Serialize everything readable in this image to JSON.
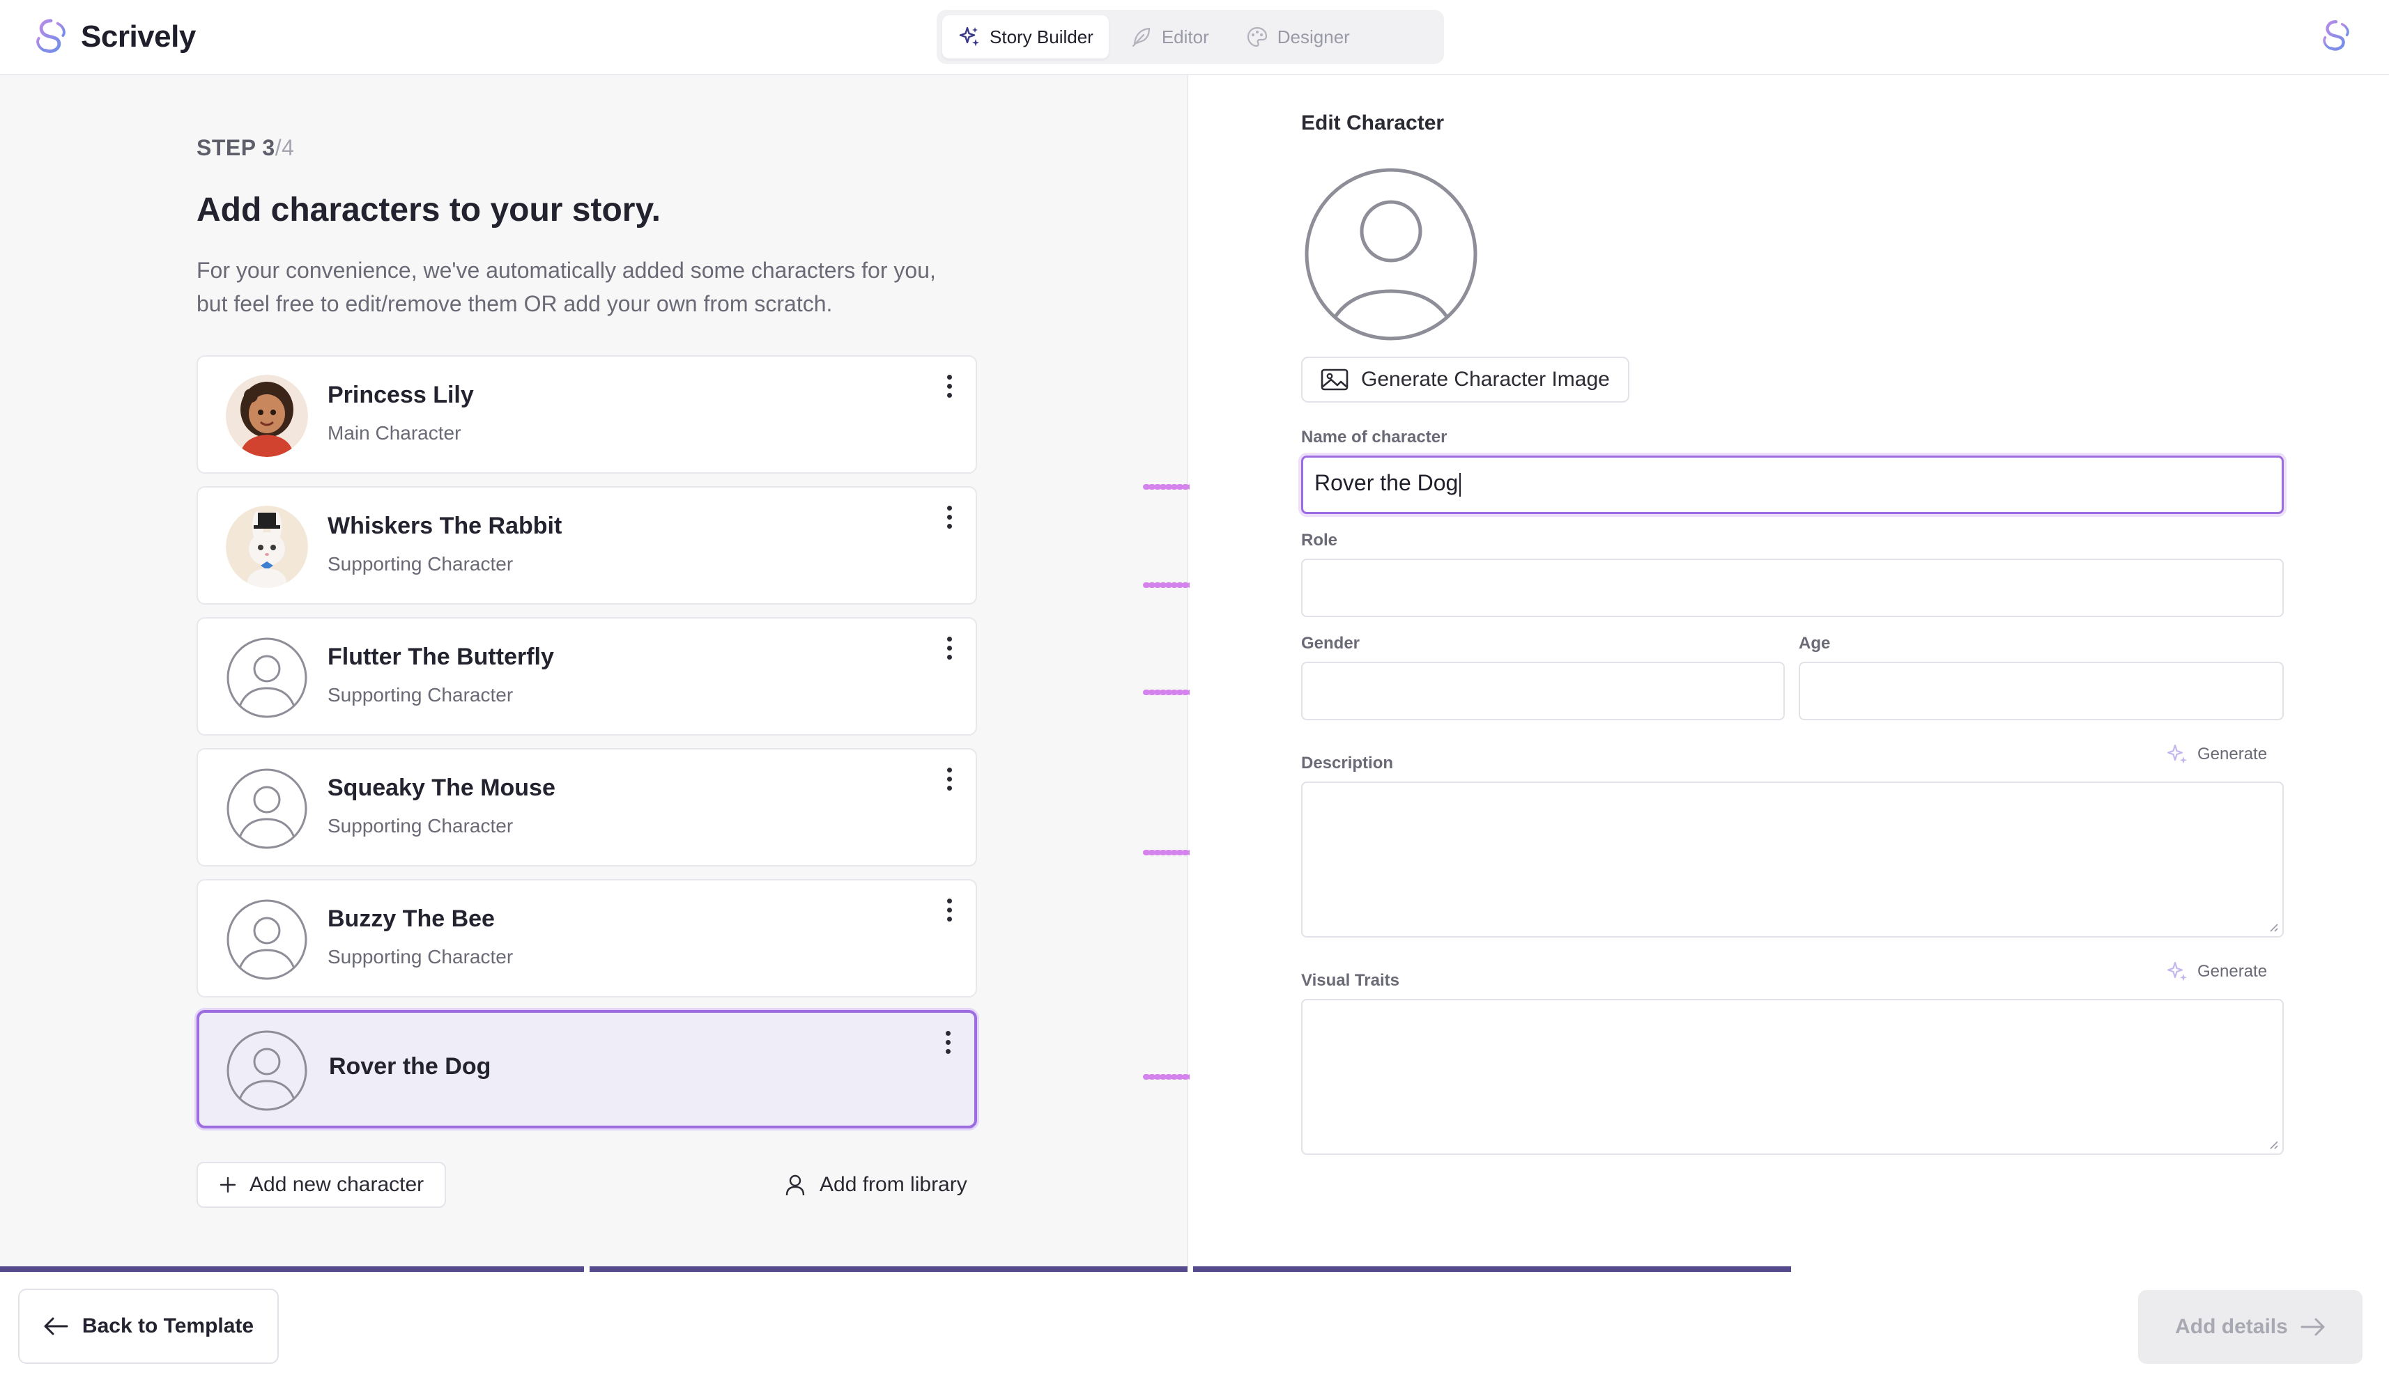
{
  "app": {
    "name": "Scrively"
  },
  "modes": [
    {
      "label": "Story Builder",
      "icon": "sparkles-icon",
      "active": true
    },
    {
      "label": "Editor",
      "icon": "feather-icon",
      "active": false
    },
    {
      "label": "Designer",
      "icon": "palette-icon",
      "active": false
    }
  ],
  "step": {
    "current": "STEP 3",
    "total": "/4"
  },
  "main": {
    "heading": "Add characters to your story.",
    "subtitle": "For your convenience, we've automatically added some characters for you, but feel free to edit/remove them OR add your own from scratch."
  },
  "characters": [
    {
      "name": "Princess Lily",
      "role": "Main Character",
      "avatar": "girl-portrait"
    },
    {
      "name": "Whiskers The Rabbit",
      "role": "Supporting Character",
      "avatar": "rabbit-portrait"
    },
    {
      "name": "Flutter The Butterfly",
      "role": "Supporting Character",
      "avatar": "person-placeholder-icon"
    },
    {
      "name": "Squeaky The Mouse",
      "role": "Supporting Character",
      "avatar": "person-placeholder-icon"
    },
    {
      "name": "Buzzy The Bee",
      "role": "Supporting Character",
      "avatar": "person-placeholder-icon"
    },
    {
      "name": "Rover the Dog",
      "role": "",
      "avatar": "person-placeholder-icon",
      "selected": true
    }
  ],
  "actions": {
    "add_new": "Add new character",
    "add_library": "Add from library"
  },
  "editor": {
    "title": "Edit Character",
    "generate_image": "Generate Character Image",
    "name_label": "Name of character",
    "name_value": "Rover the Dog",
    "role_label": "Role",
    "role_value": "",
    "gender_label": "Gender",
    "gender_value": "",
    "age_label": "Age",
    "age_value": "",
    "description_label": "Description",
    "description_value": "",
    "visual_label": "Visual Traits",
    "visual_value": "",
    "generate_label": "Generate"
  },
  "progress": {
    "completed_steps": 3,
    "total_steps": 4
  },
  "footer": {
    "back_label": "Back to Template",
    "next_label": "Add details"
  },
  "colors": {
    "accent": "#9d6ce0",
    "progress": "#564a8f",
    "arrow": "#d583ec",
    "selected_bg": "#efedf8"
  }
}
